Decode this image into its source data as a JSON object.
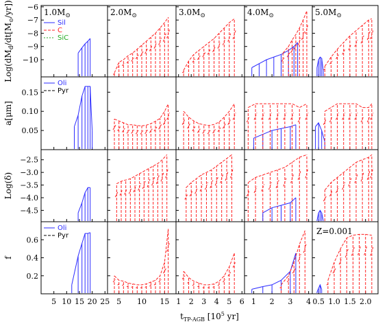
{
  "chart_data": {
    "type": "line",
    "layout_rows": 4,
    "layout_cols": 5,
    "colors": {
      "Sil": "#2a2aff",
      "C": "#ff2020",
      "SiC": "#22aa22",
      "Oli": "#2a2aff",
      "Pyr": "#000000"
    },
    "columns": [
      {
        "label": "1.0M",
        "x_ticks": [
          "5",
          "10",
          "15",
          "20",
          "25"
        ],
        "xlim": [
          0,
          26
        ]
      },
      {
        "label": "2.0M",
        "x_ticks": [
          "5",
          "10",
          "15"
        ],
        "xlim": [
          2.5,
          17.5
        ]
      },
      {
        "label": "3.0M",
        "x_ticks": [
          "1",
          "2",
          "3",
          "4",
          "5",
          "6"
        ],
        "xlim": [
          0.8,
          6.2
        ]
      },
      {
        "label": "4.0M",
        "x_ticks": [
          "1",
          "2",
          "3",
          "4"
        ],
        "xlim": [
          0.5,
          4.2
        ]
      },
      {
        "label": "5.0M",
        "x_ticks": [
          "0.5",
          "1.0",
          "1.5",
          "2.0"
        ],
        "xlim": [
          0.3,
          2.4
        ]
      }
    ],
    "rows": [
      {
        "ylabel": "Log(dM",
        "ylabel_sub": "d",
        "ylabel_tail": "/dt[M",
        "ylabel_tail2": "/yr])",
        "ylim": [
          -11.3,
          -5.9
        ],
        "ticks": [
          {
            "v": -6,
            "t": "−6"
          },
          {
            "v": -7,
            "t": "−7"
          },
          {
            "v": -8,
            "t": "−8"
          },
          {
            "v": -9,
            "t": "−9"
          },
          {
            "v": -10,
            "t": "−10"
          }
        ],
        "legend": [
          "Sil",
          "C",
          "SiC"
        ]
      },
      {
        "ylabel": "a[μm]",
        "ylim": [
          0,
          0.19
        ],
        "ticks": [
          {
            "v": 0.05,
            "t": "0.05"
          },
          {
            "v": 0.1,
            "t": "0.10"
          },
          {
            "v": 0.15,
            "t": "0.15"
          }
        ],
        "legend": [
          "Oli",
          "Pyr"
        ]
      },
      {
        "ylabel": "Log(δ)",
        "ylim": [
          -4.95,
          -2.1
        ],
        "ticks": [
          {
            "v": -2.5,
            "t": "−2.5"
          },
          {
            "v": -3.0,
            "t": "−3.0"
          },
          {
            "v": -3.5,
            "t": "−3.5"
          },
          {
            "v": -4.0,
            "t": "−4.0"
          },
          {
            "v": -4.5,
            "t": "−4.5"
          }
        ],
        "legend": []
      },
      {
        "ylabel": "f",
        "ylim": [
          0,
          0.8
        ],
        "ticks": [
          {
            "v": 0.2,
            "t": "0.2"
          },
          {
            "v": 0.4,
            "t": "0.4"
          },
          {
            "v": 0.6,
            "t": "0.6"
          }
        ],
        "legend": [
          "Oli",
          "Pyr"
        ]
      }
    ],
    "annotation": "Z=0.001",
    "xlabel": "t",
    "xlabel_sub": "TP-AGB",
    "xlabel_tail": " [10",
    "xlabel_sup": "5",
    "xlabel_end": " yr]",
    "series": [
      {
        "name": "1.0M Sil pulses",
        "col": 0,
        "row": 0,
        "color": "blue",
        "x": [
          14.5,
          16.0,
          17.2,
          18.3,
          19.2
        ],
        "y": [
          -9.5,
          -9.1,
          -8.8,
          -8.6,
          -8.4
        ]
      },
      {
        "name": "1.0M Oli a",
        "col": 0,
        "row": 1,
        "color": "blue",
        "x": [
          13.0,
          14.5,
          16.0,
          17.2,
          18.3,
          19.2,
          20.0
        ],
        "y": [
          0.06,
          0.09,
          0.14,
          0.165,
          0.165,
          0.165,
          0.05
        ]
      },
      {
        "name": "1.0M delta",
        "col": 0,
        "row": 2,
        "color": "blue",
        "x": [
          14.5,
          16.0,
          17.2,
          18.3,
          19.2
        ],
        "y": [
          -4.6,
          -4.2,
          -3.8,
          -3.6,
          -3.6
        ]
      },
      {
        "name": "1.0M f",
        "col": 0,
        "row": 3,
        "color": "blue",
        "x": [
          12.0,
          14.5,
          16.0,
          17.2,
          18.3,
          19.2
        ],
        "y": [
          0.1,
          0.42,
          0.56,
          0.67,
          0.67,
          0.68
        ]
      },
      {
        "name": "2.0M C rate",
        "col": 1,
        "row": 0,
        "color": "red",
        "x": [
          4,
          5,
          6,
          7,
          8,
          9,
          10,
          11,
          12,
          13,
          14,
          15,
          15.8
        ],
        "y": [
          -11,
          -10.2,
          -10.0,
          -9.7,
          -9.5,
          -9.2,
          -8.9,
          -8.6,
          -8.3,
          -8.0,
          -7.6,
          -7.2,
          -6.8
        ]
      },
      {
        "name": "2.0M C a",
        "col": 1,
        "row": 1,
        "color": "red",
        "x": [
          4,
          5,
          6,
          7,
          8,
          9,
          10,
          11,
          12,
          13,
          14,
          15,
          15.8
        ],
        "y": [
          0.08,
          0.075,
          0.07,
          0.065,
          0.065,
          0.063,
          0.062,
          0.064,
          0.068,
          0.074,
          0.082,
          0.1,
          0.12
        ]
      },
      {
        "name": "2.0M C delta",
        "col": 1,
        "row": 2,
        "color": "red",
        "x": [
          4.5,
          5.5,
          6.5,
          7.5,
          8.5,
          9.5,
          10.5,
          11.5,
          12.5,
          13.5,
          14.5,
          15.5
        ],
        "y": [
          -3.45,
          -3.35,
          -3.3,
          -3.25,
          -3.15,
          -3.05,
          -2.95,
          -2.85,
          -2.75,
          -2.65,
          -2.5,
          -2.3
        ]
      },
      {
        "name": "2.0M C f",
        "col": 1,
        "row": 3,
        "color": "red",
        "x": [
          4,
          5,
          6,
          7,
          8,
          9,
          10,
          11,
          12,
          13,
          14,
          15,
          15.8
        ],
        "y": [
          0.2,
          0.15,
          0.14,
          0.12,
          0.11,
          0.1,
          0.1,
          0.11,
          0.13,
          0.15,
          0.2,
          0.35,
          0.72
        ]
      },
      {
        "name": "3.0M C rate",
        "col": 2,
        "row": 0,
        "color": "red",
        "x": [
          1.4,
          1.8,
          2.2,
          2.6,
          3.0,
          3.4,
          3.8,
          4.2,
          4.6,
          5.0,
          5.4
        ],
        "y": [
          -10.8,
          -10.1,
          -9.6,
          -9.3,
          -9.0,
          -8.7,
          -8.4,
          -8.0,
          -7.6,
          -7.2,
          -6.9
        ]
      },
      {
        "name": "3.0M C a",
        "col": 2,
        "row": 1,
        "color": "red",
        "x": [
          1.4,
          1.8,
          2.2,
          2.6,
          3.0,
          3.4,
          3.8,
          4.2,
          4.6,
          5.0,
          5.4
        ],
        "y": [
          0.1,
          0.085,
          0.075,
          0.068,
          0.065,
          0.063,
          0.066,
          0.072,
          0.085,
          0.1,
          0.12
        ]
      },
      {
        "name": "3.0M C delta",
        "col": 2,
        "row": 2,
        "color": "red",
        "x": [
          1.6,
          2.0,
          2.4,
          2.8,
          3.2,
          3.6,
          4.0,
          4.4,
          4.8,
          5.2
        ],
        "y": [
          -3.6,
          -3.4,
          -3.25,
          -3.1,
          -3.0,
          -2.9,
          -2.75,
          -2.6,
          -2.45,
          -2.3
        ]
      },
      {
        "name": "3.0M C f",
        "col": 2,
        "row": 3,
        "color": "red",
        "x": [
          1.4,
          1.8,
          2.2,
          2.6,
          3.0,
          3.4,
          3.8,
          4.2,
          4.6,
          5.0,
          5.4
        ],
        "y": [
          0.25,
          0.18,
          0.14,
          0.12,
          0.1,
          0.1,
          0.11,
          0.14,
          0.2,
          0.3,
          0.45
        ]
      },
      {
        "name": "4.0M Sil rate",
        "col": 3,
        "row": 0,
        "color": "blue",
        "x": [
          0.9,
          1.3,
          1.7,
          2.1,
          2.5,
          2.9,
          3.2,
          3.4
        ],
        "y": [
          -10.6,
          -10.3,
          -10.0,
          -9.8,
          -9.6,
          -9.3,
          -9.0,
          -8.7
        ]
      },
      {
        "name": "4.0M C rate",
        "col": 3,
        "row": 0,
        "color": "red",
        "x": [
          2.6,
          2.9,
          3.1,
          3.3,
          3.5,
          3.7,
          3.9
        ],
        "y": [
          -9.5,
          -9.0,
          -8.5,
          -8.1,
          -7.6,
          -7.0,
          -6.3
        ]
      },
      {
        "name": "4.0M Oli a",
        "col": 3,
        "row": 1,
        "color": "blue",
        "x": [
          1.0,
          1.5,
          2.0,
          2.5,
          3.0,
          3.3
        ],
        "y": [
          0.03,
          0.04,
          0.05,
          0.055,
          0.06,
          0.065
        ]
      },
      {
        "name": "4.0M C a",
        "col": 3,
        "row": 1,
        "color": "red",
        "x": [
          0.7,
          1.1,
          1.5,
          1.9,
          2.3,
          2.7,
          3.1,
          3.5,
          3.9
        ],
        "y": [
          0.11,
          0.12,
          0.12,
          0.12,
          0.12,
          0.12,
          0.12,
          0.11,
          0.12
        ]
      },
      {
        "name": "4.0M C delta",
        "col": 3,
        "row": 2,
        "color": "red",
        "x": [
          0.7,
          1.1,
          1.5,
          1.9,
          2.3,
          2.7,
          3.1,
          3.5,
          3.9
        ],
        "y": [
          -3.4,
          -3.2,
          -3.1,
          -3.0,
          -2.9,
          -2.8,
          -2.6,
          -2.4,
          -2.3
        ]
      },
      {
        "name": "4.0M Oli delta",
        "col": 3,
        "row": 2,
        "color": "blue",
        "x": [
          1.5,
          2.0,
          2.5,
          3.0,
          3.3
        ],
        "y": [
          -4.6,
          -4.4,
          -4.3,
          -4.2,
          -4.0
        ]
      },
      {
        "name": "4.0M Oli f",
        "col": 3,
        "row": 3,
        "color": "blue",
        "x": [
          0.9,
          1.5,
          2.0,
          2.5,
          3.0,
          3.3
        ],
        "y": [
          0.05,
          0.08,
          0.1,
          0.15,
          0.25,
          0.45
        ]
      },
      {
        "name": "4.0M C f",
        "col": 3,
        "row": 3,
        "color": "red",
        "x": [
          2.5,
          2.9,
          3.2,
          3.5,
          3.8
        ],
        "y": [
          0.1,
          0.2,
          0.35,
          0.55,
          0.7
        ]
      },
      {
        "name": "5.0M Sil rate",
        "col": 4,
        "row": 0,
        "color": "blue",
        "x": [
          0.45,
          0.5,
          0.55,
          0.6,
          0.65
        ],
        "y": [
          -10.6,
          -10.0,
          -9.8,
          -9.9,
          -10.8
        ]
      },
      {
        "name": "5.0M C rate",
        "col": 4,
        "row": 0,
        "color": "red",
        "x": [
          0.7,
          0.9,
          1.1,
          1.3,
          1.5,
          1.7,
          1.9,
          2.1,
          2.2
        ],
        "y": [
          -10.5,
          -9.8,
          -9.2,
          -8.7,
          -8.2,
          -7.8,
          -7.4,
          -7.0,
          -6.9
        ]
      },
      {
        "name": "5.0M Oli a",
        "col": 4,
        "row": 1,
        "color": "blue",
        "x": [
          0.4,
          0.5,
          0.6,
          0.7
        ],
        "y": [
          0.06,
          0.07,
          0.05,
          0.02
        ]
      },
      {
        "name": "5.0M C a",
        "col": 4,
        "row": 1,
        "color": "red",
        "x": [
          0.7,
          0.9,
          1.1,
          1.3,
          1.5,
          1.7,
          1.9,
          2.1,
          2.2
        ],
        "y": [
          0.1,
          0.11,
          0.12,
          0.12,
          0.12,
          0.12,
          0.11,
          0.11,
          0.12
        ]
      },
      {
        "name": "5.0M Oli delta",
        "col": 4,
        "row": 2,
        "color": "blue",
        "x": [
          0.45,
          0.5,
          0.55,
          0.6,
          0.65
        ],
        "y": [
          -4.9,
          -4.6,
          -4.5,
          -4.6,
          -4.9
        ]
      },
      {
        "name": "5.0M C delta",
        "col": 4,
        "row": 2,
        "color": "red",
        "x": [
          0.7,
          0.9,
          1.1,
          1.3,
          1.5,
          1.7,
          1.9,
          2.1,
          2.2
        ],
        "y": [
          -3.7,
          -3.4,
          -3.2,
          -3.0,
          -2.8,
          -2.6,
          -2.5,
          -2.4,
          -2.3
        ]
      },
      {
        "name": "5.0M Oli f",
        "col": 4,
        "row": 3,
        "color": "blue",
        "x": [
          0.45,
          0.5,
          0.55,
          0.6
        ],
        "y": [
          0.02,
          0.06,
          0.1,
          0.05
        ]
      },
      {
        "name": "5.0M C f",
        "col": 4,
        "row": 3,
        "color": "red",
        "x": [
          0.8,
          1.0,
          1.2,
          1.4,
          1.6,
          1.8,
          2.0,
          2.2
        ],
        "y": [
          0.15,
          0.35,
          0.5,
          0.62,
          0.65,
          0.66,
          0.66,
          0.65
        ]
      }
    ]
  }
}
